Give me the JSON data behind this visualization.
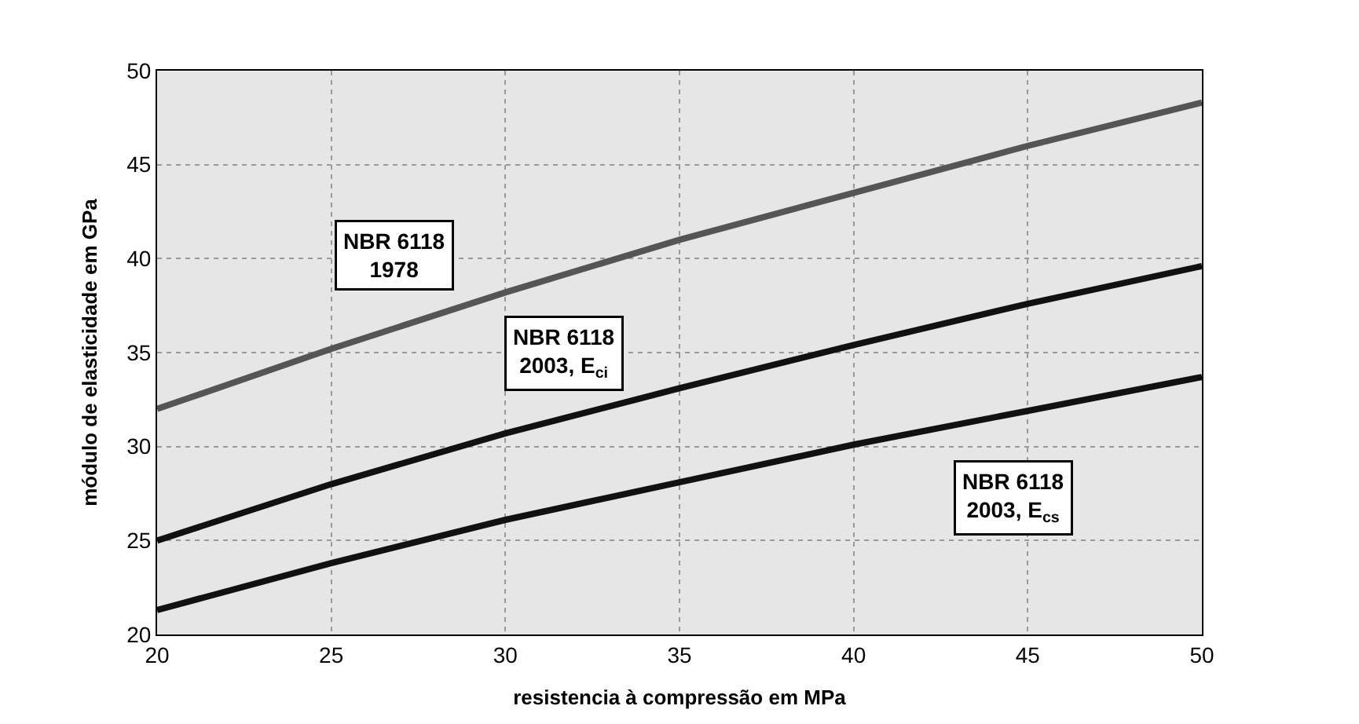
{
  "chart_data": {
    "type": "line",
    "xlabel": "resistencia à compressão em MPa",
    "ylabel": "módulo de elasticidade em GPa",
    "x": [
      20,
      25,
      30,
      35,
      40,
      45,
      50
    ],
    "series": [
      {
        "name": "NBR 6118\n1978",
        "color": "#555555",
        "values": [
          32.0,
          35.2,
          38.2,
          41.0,
          43.5,
          46.0,
          48.3
        ]
      },
      {
        "name": "NBR 6118\n2003, E$_{ci}$",
        "color": "#111111",
        "values": [
          25.0,
          28.0,
          30.7,
          33.1,
          35.4,
          37.6,
          39.6
        ]
      },
      {
        "name": "NBR 6118\n2003, E$_{cs}$",
        "color": "#111111",
        "values": [
          21.3,
          23.8,
          26.1,
          28.1,
          30.1,
          31.9,
          33.7
        ]
      }
    ],
    "xlim": [
      20,
      50
    ],
    "xticks": [
      20,
      25,
      30,
      35,
      40,
      45,
      50
    ],
    "ylim": [
      20,
      50
    ],
    "yticks": [
      20,
      25,
      30,
      35,
      40,
      45,
      50
    ],
    "grid": true,
    "line_style": "solid",
    "marker": "none",
    "legend": false
  }
}
